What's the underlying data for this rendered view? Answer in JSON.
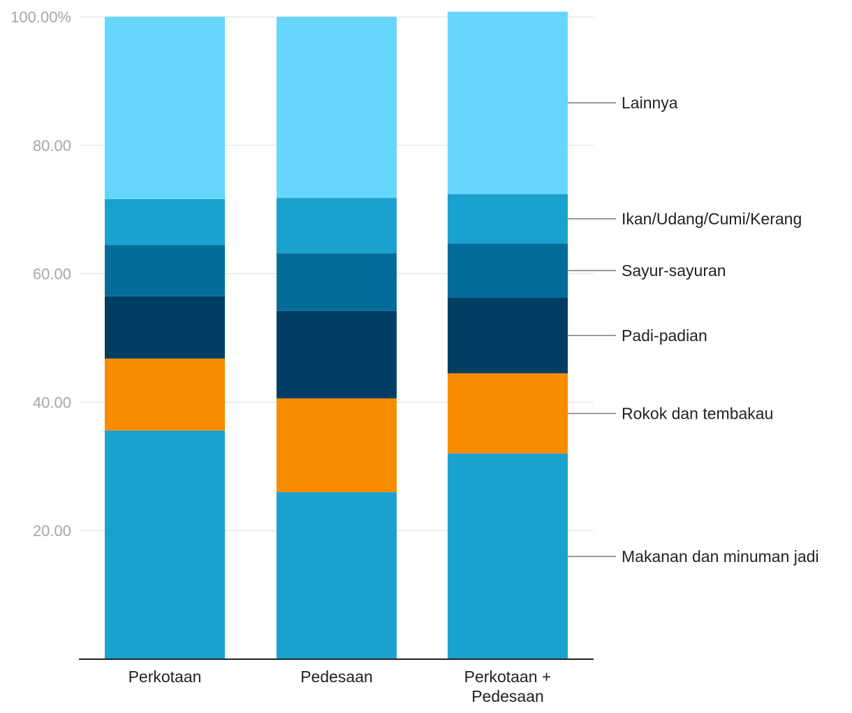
{
  "chart_data": {
    "type": "bar",
    "stacked": true,
    "categories": [
      "Perkotaan",
      "Pedesaan",
      "Perkotaan + Pedesaan"
    ],
    "category_lines": [
      [
        "Perkotaan"
      ],
      [
        "Pedesaan"
      ],
      [
        "Perkotaan +",
        "Pedesaan"
      ]
    ],
    "series": [
      {
        "name": "Makanan dan minuman jadi",
        "color": "#1aa1cf",
        "values": [
          35.6,
          26.0,
          32.0
        ]
      },
      {
        "name": "Rokok dan tembakau",
        "color": "#f78c00",
        "values": [
          11.2,
          14.6,
          12.5
        ]
      },
      {
        "name": "Padi-padian",
        "color": "#013e63",
        "values": [
          9.7,
          13.6,
          11.8
        ]
      },
      {
        "name": "Sayur-sayuran",
        "color": "#026d98",
        "values": [
          8.0,
          9.0,
          8.4
        ]
      },
      {
        "name": "Ikan/Udang/Cumi/Kerang",
        "color": "#1aa1cf",
        "values": [
          7.1,
          8.6,
          7.7
        ]
      },
      {
        "name": "Lainnya",
        "color": "#67d6fd",
        "values": [
          28.4,
          28.2,
          28.4
        ]
      }
    ],
    "yticks": [
      "20.00",
      "40.00",
      "60.00",
      "80.00",
      "100.00%"
    ],
    "ytick_values": [
      20,
      40,
      60,
      80,
      100
    ],
    "ylim": [
      0,
      100
    ],
    "grid": true,
    "legend": "right, direct labels",
    "title": "",
    "xlabel": "",
    "ylabel": ""
  }
}
